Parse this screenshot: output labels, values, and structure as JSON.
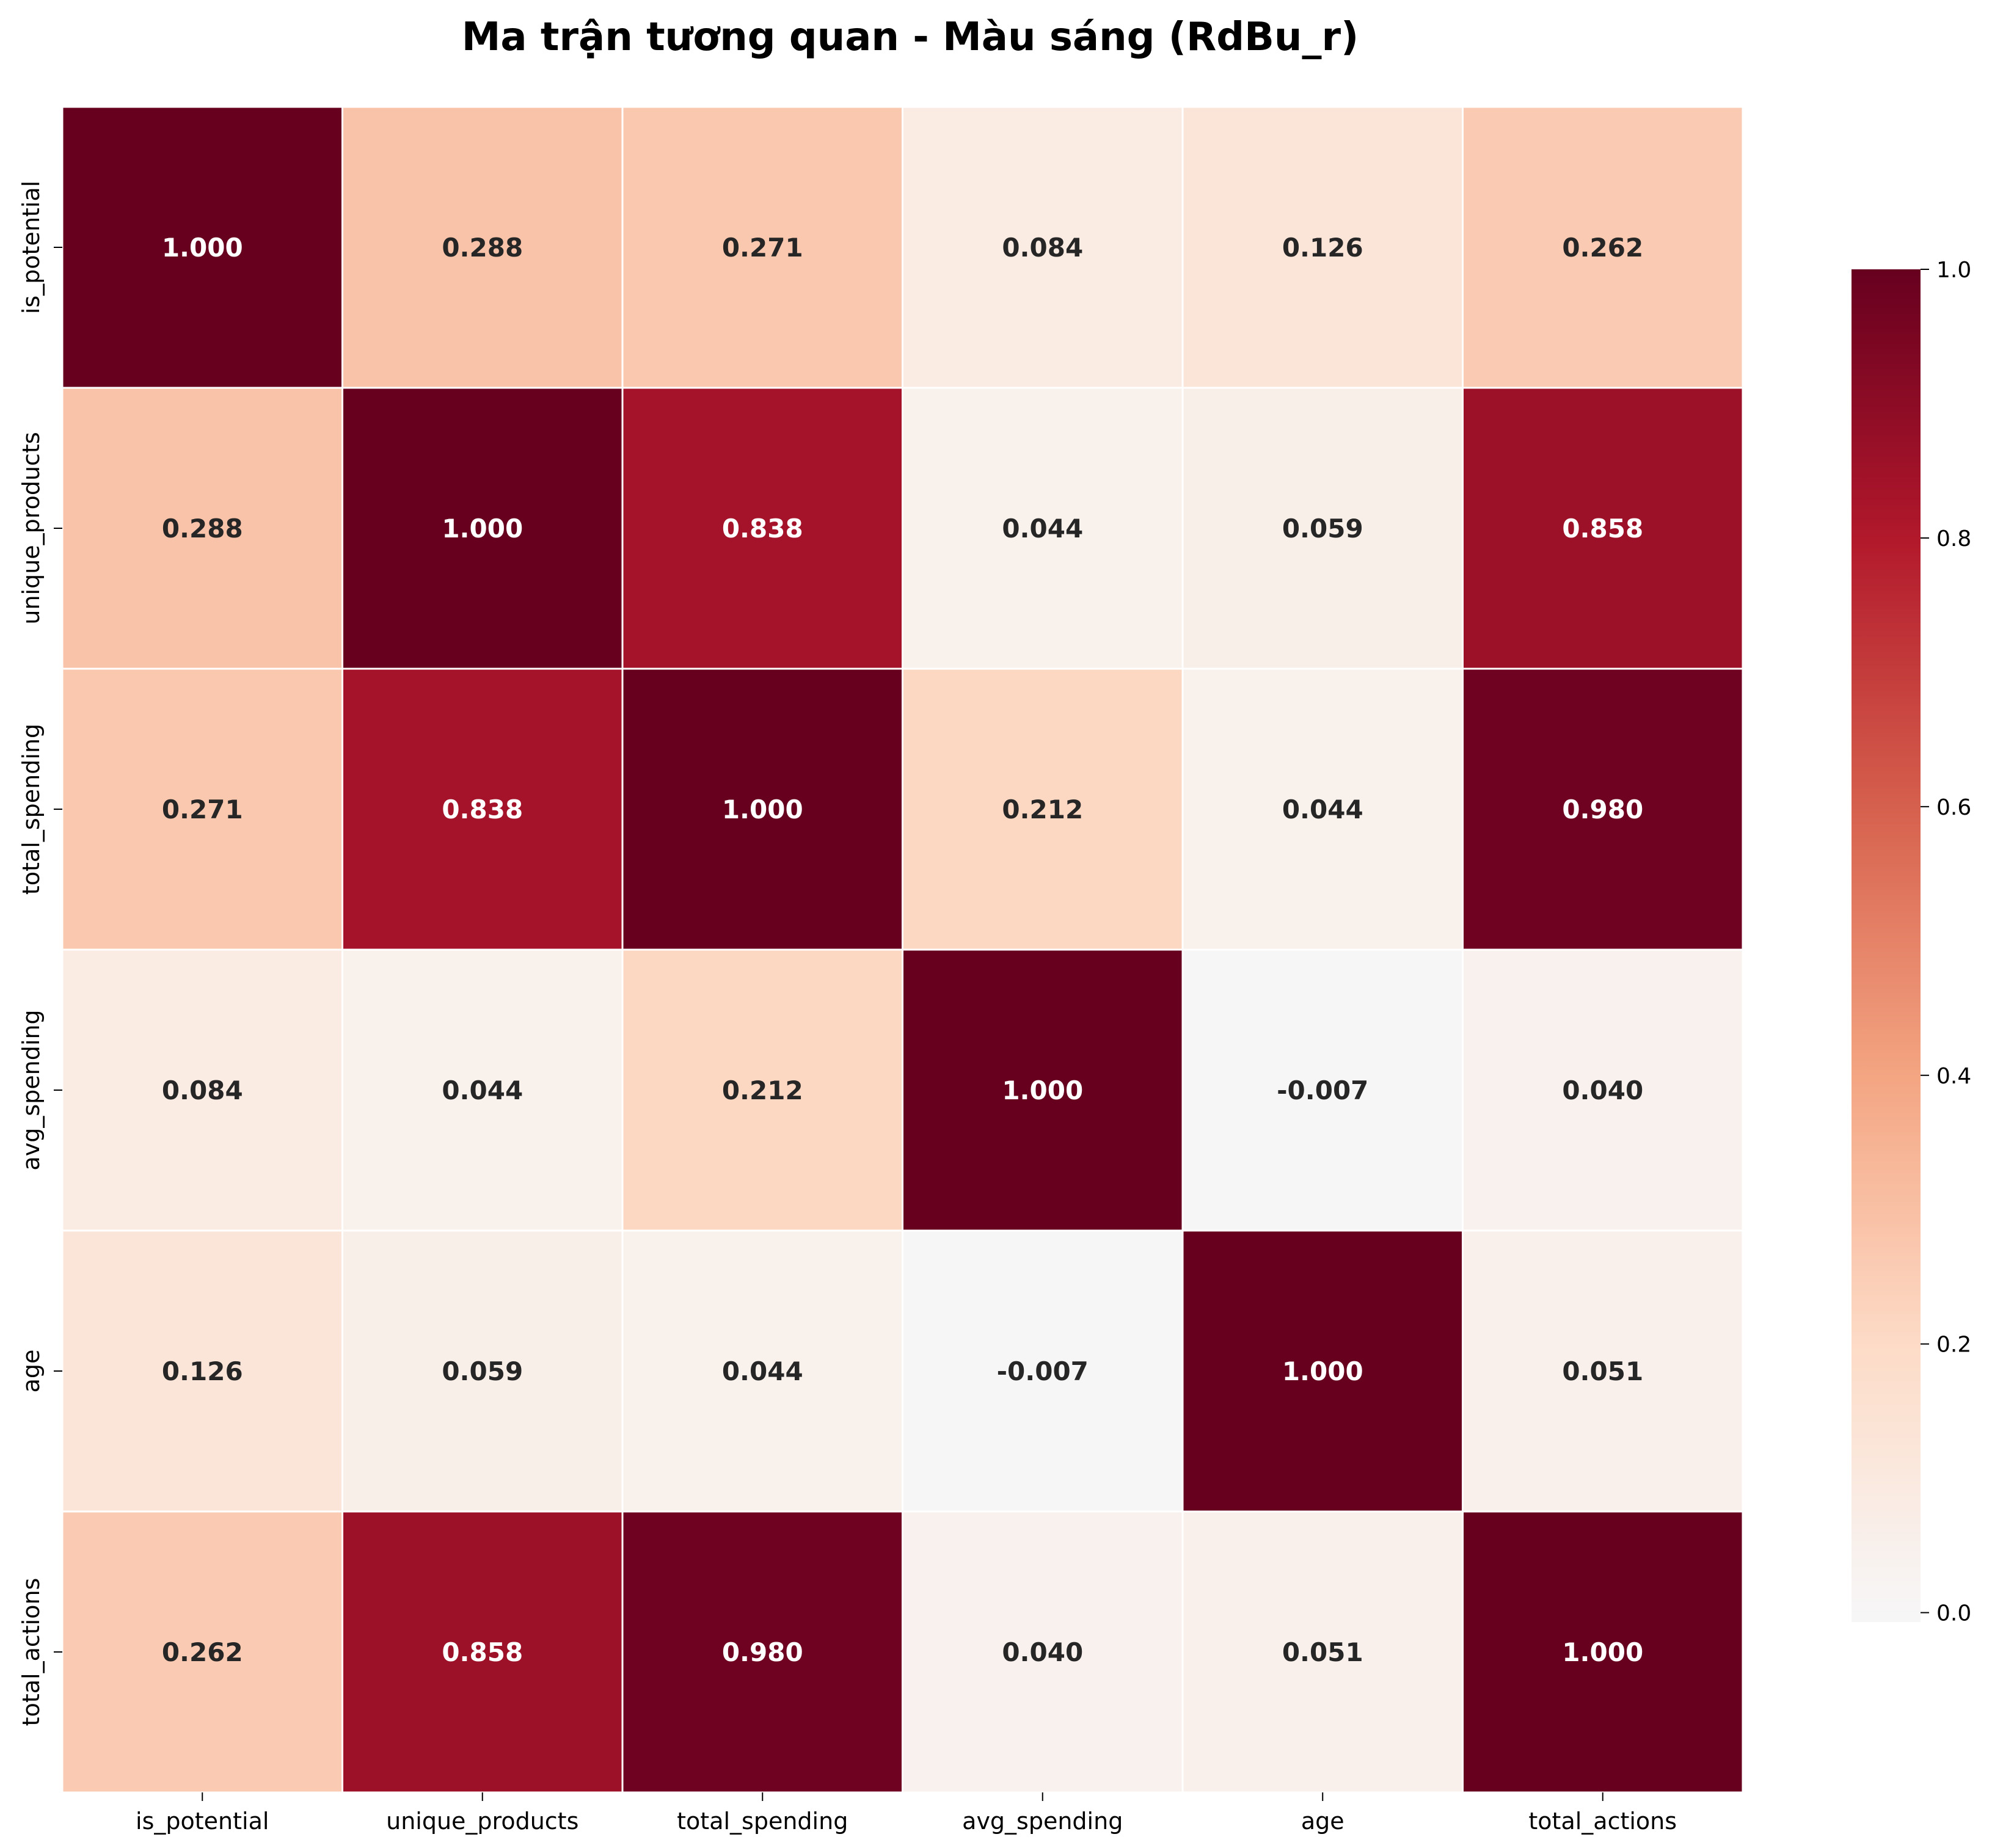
{
  "chart_data": {
    "type": "heatmap",
    "title": "Ma trận tương quan - Màu sáng (RdBu_r)",
    "variables": [
      "is_potential",
      "unique_products",
      "total_spending",
      "avg_spending",
      "age",
      "total_actions"
    ],
    "matrix": [
      [
        1.0,
        0.288,
        0.271,
        0.084,
        0.126,
        0.262
      ],
      [
        0.288,
        1.0,
        0.838,
        0.044,
        0.059,
        0.858
      ],
      [
        0.271,
        0.838,
        1.0,
        0.212,
        0.044,
        0.98
      ],
      [
        0.084,
        0.044,
        0.212,
        1.0,
        -0.007,
        0.04
      ],
      [
        0.126,
        0.059,
        0.044,
        -0.007,
        1.0,
        0.051
      ],
      [
        0.262,
        0.858,
        0.98,
        0.04,
        0.051,
        1.0
      ]
    ],
    "annotation_labels": [
      [
        "1.000",
        "0.288",
        "0.271",
        "0.084",
        "0.126",
        "0.262"
      ],
      [
        "0.288",
        "1.000",
        "0.838",
        "0.044",
        "0.059",
        "0.858"
      ],
      [
        "0.271",
        "0.838",
        "1.000",
        "0.212",
        "0.044",
        "0.980"
      ],
      [
        "0.084",
        "0.044",
        "0.212",
        "1.000",
        "-0.007",
        "0.040"
      ],
      [
        "0.126",
        "0.059",
        "0.044",
        "-0.007",
        "1.000",
        "0.051"
      ],
      [
        "0.262",
        "0.858",
        "0.980",
        "0.040",
        "0.051",
        "1.000"
      ]
    ],
    "colormap": "RdBu_r",
    "colorbar": {
      "range": [
        -0.007,
        1.0
      ],
      "ticks": [
        0.0,
        0.2,
        0.4,
        0.6,
        0.8,
        1.0
      ],
      "tick_labels": [
        "0.0",
        "0.2",
        "0.4",
        "0.6",
        "0.8",
        "1.0"
      ]
    },
    "colors": {
      "low": "#f7f7f7",
      "high": "#67001f",
      "cell_border": "#ffffff",
      "text_dark": "#262626",
      "text_light": "#ffffff"
    }
  }
}
